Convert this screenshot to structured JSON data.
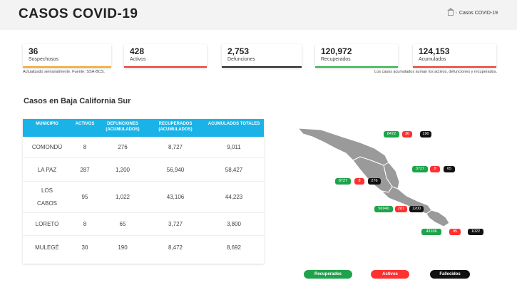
{
  "header": {
    "title": "CASOS COVID-19",
    "breadcrumb_current": "Casos COVID-19"
  },
  "stats": [
    {
      "value": "36",
      "label": "Sospechosos",
      "color": "#f5a623"
    },
    {
      "value": "428",
      "label": "Activos",
      "color": "#e83b2e"
    },
    {
      "value": "2,753",
      "label": "Defunciones",
      "color": "#222222"
    },
    {
      "value": "120,972",
      "label": "Recuperados",
      "color": "#2fb34a"
    },
    {
      "value": "124,153",
      "label": "Acumulados",
      "color": "#e83b2e"
    }
  ],
  "notes": {
    "left": "Actualizado semanalmente. Fuente: SSA-BCS.",
    "right": "Los casos acumulados suman los activos, defunciones y recuperados."
  },
  "section_title": "Casos en Baja California Sur",
  "table": {
    "headers": [
      "MUNICIPIO",
      "ACTIVOS",
      "DEFUNCIONES (ACUMULADOS)",
      "RECUPERADOS (ACUMULADOS)",
      "ACUMULADOS TOTALES"
    ],
    "rows": [
      [
        "COMONDÚ",
        "8",
        "276",
        "8,727",
        "9,011"
      ],
      [
        "LA PAZ",
        "287",
        "1,200",
        "56,940",
        "58,427"
      ],
      [
        "LOS CABOS",
        "95",
        "1,022",
        "43,106",
        "44,223"
      ],
      [
        "LORETO",
        "8",
        "65",
        "3,727",
        "3,800"
      ],
      [
        "MULEGÉ",
        "30",
        "190",
        "8,472",
        "8,692"
      ]
    ]
  },
  "map_labels": [
    {
      "rec": "8472",
      "act": "30",
      "fal": "190"
    },
    {
      "rec": "3727",
      "act": "8",
      "fal": "65"
    },
    {
      "rec": "8727",
      "act": "8",
      "fal": "276"
    },
    {
      "rec": "56940",
      "act": "287",
      "fal": "1200"
    },
    {
      "rec": "43106",
      "act": "95",
      "fal": "1022"
    }
  ],
  "legend": {
    "recuperados": "Recuperados",
    "activos": "Activos",
    "fallecidos": "Fallecidos"
  }
}
